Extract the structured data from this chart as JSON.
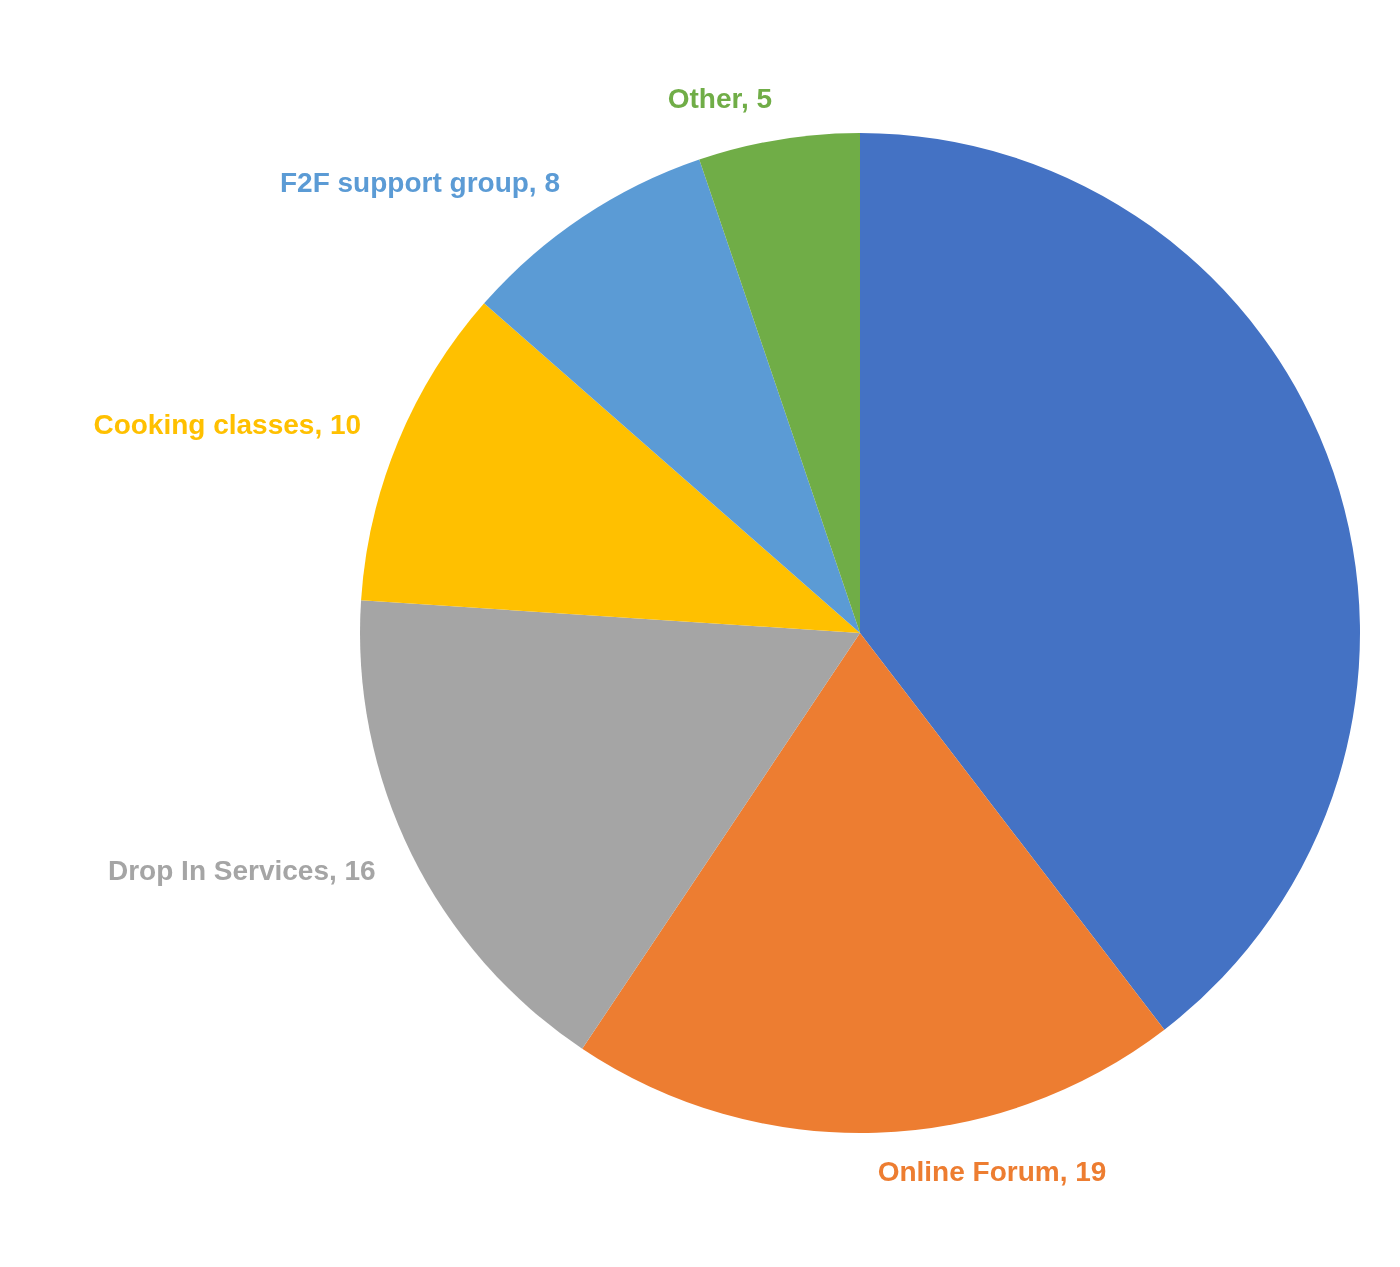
{
  "chart_data": {
    "type": "pie",
    "categories": [
      null,
      "Online Forum",
      "Drop In Services",
      "Cooking classes",
      "F2F support group",
      "Other"
    ],
    "values": [
      38,
      19,
      16,
      10,
      8,
      5
    ],
    "value_labels": [
      null,
      "19",
      "16",
      "10",
      "8",
      "5"
    ],
    "colors": [
      "#4472c4",
      "#ed7d31",
      "#a5a5a5",
      "#ffc000",
      "#5b9bd5",
      "#70ad47"
    ]
  }
}
